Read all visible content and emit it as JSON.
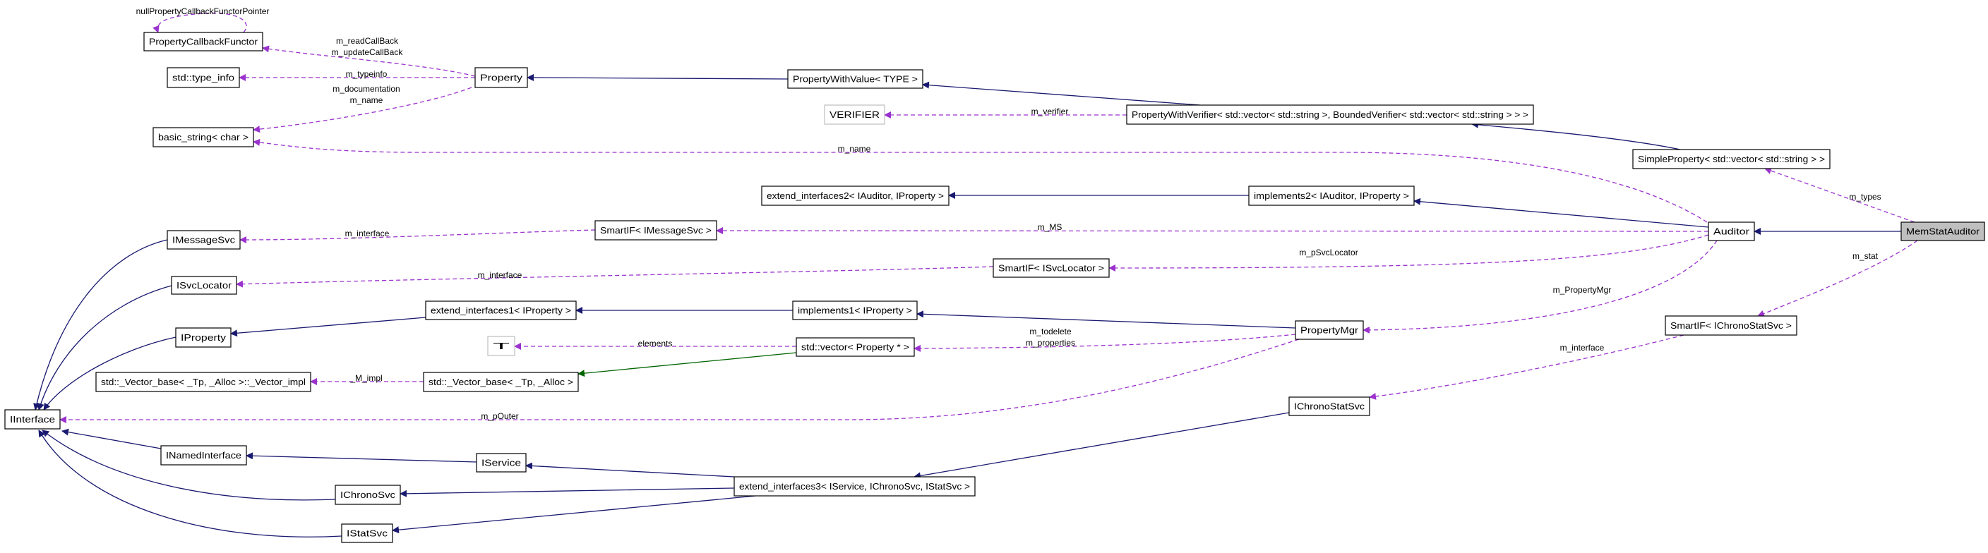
{
  "colors": {
    "inheritance": "#191970",
    "usage": "#9a32cd",
    "template": "#006400",
    "highlight_fill": "#bfbfbf",
    "undocumented_border": "#bfbfbf"
  },
  "nodes": [
    {
      "id": "pcf",
      "label": "PropertyCallbackFunctor"
    },
    {
      "id": "typeinfo",
      "label": "std::type_info"
    },
    {
      "id": "property",
      "label": "Property"
    },
    {
      "id": "basicstr",
      "label": "basic_string< char >"
    },
    {
      "id": "pwv",
      "label": "PropertyWithValue< TYPE >"
    },
    {
      "id": "verifier",
      "label": "VERIFIER",
      "style": "undocumented"
    },
    {
      "id": "pwverif",
      "label": "PropertyWithVerifier< std::vector< std::string >, BoundedVerifier< std::vector< std::string > > >"
    },
    {
      "id": "simpleprop",
      "label": "SimpleProperty< std::vector< std::string > >"
    },
    {
      "id": "ext2",
      "label": "extend_interfaces2< IAuditor, IProperty >"
    },
    {
      "id": "impl2",
      "label": "implements2< IAuditor, IProperty >"
    },
    {
      "id": "smartmsg",
      "label": "SmartIF< IMessageSvc >"
    },
    {
      "id": "imsg",
      "label": "IMessageSvc"
    },
    {
      "id": "auditor",
      "label": "Auditor"
    },
    {
      "id": "memstat",
      "label": "MemStatAuditor",
      "style": "highlight"
    },
    {
      "id": "smartsvc",
      "label": "SmartIF< ISvcLocator >"
    },
    {
      "id": "isvcloc",
      "label": "ISvcLocator"
    },
    {
      "id": "ext1",
      "label": "extend_interfaces1< IProperty >"
    },
    {
      "id": "impl1",
      "label": "implements1< IProperty >"
    },
    {
      "id": "smartchrono",
      "label": "SmartIF< IChronoStatSvc >"
    },
    {
      "id": "propmgr",
      "label": "PropertyMgr"
    },
    {
      "id": "iprop",
      "label": "IProperty"
    },
    {
      "id": "T",
      "label": "T",
      "style": "undocumented"
    },
    {
      "id": "vecprop",
      "label": "std::vector< Property * >"
    },
    {
      "id": "vimpl",
      "label": "std::_Vector_base< _Tp, _Alloc >::_Vector_impl"
    },
    {
      "id": "vbase",
      "label": "std::_Vector_base< _Tp, _Alloc >"
    },
    {
      "id": "ichronostat",
      "label": "IChronoStatSvc"
    },
    {
      "id": "iinterface",
      "label": "IInterface"
    },
    {
      "id": "inamed",
      "label": "INamedInterface"
    },
    {
      "id": "iservice",
      "label": "IService"
    },
    {
      "id": "ext3",
      "label": "extend_interfaces3< IService, IChronoSvc, IStatSvc >"
    },
    {
      "id": "ichrono",
      "label": "IChronoSvc"
    },
    {
      "id": "istat",
      "label": "IStatSvc"
    }
  ],
  "edges": [
    {
      "from": "pcf",
      "to": "pcf",
      "kind": "usage",
      "labels": [
        "nullPropertyCallbackFunctorPointer"
      ]
    },
    {
      "from": "property",
      "to": "pcf",
      "kind": "usage",
      "labels": [
        "m_readCallBack",
        "m_updateCallBack"
      ]
    },
    {
      "from": "property",
      "to": "typeinfo",
      "kind": "usage",
      "labels": [
        "m_typeinfo"
      ]
    },
    {
      "from": "property",
      "to": "basicstr",
      "kind": "usage",
      "labels": [
        "m_documentation",
        "m_name"
      ]
    },
    {
      "from": "pwv",
      "to": "property",
      "kind": "inheritance",
      "labels": []
    },
    {
      "from": "pwverif",
      "to": "pwv",
      "kind": "inheritance",
      "labels": []
    },
    {
      "from": "pwverif",
      "to": "verifier",
      "kind": "usage",
      "labels": [
        "m_verifier"
      ]
    },
    {
      "from": "simpleprop",
      "to": "pwverif",
      "kind": "inheritance",
      "labels": []
    },
    {
      "from": "auditor",
      "to": "basicstr",
      "kind": "usage",
      "labels": [
        "m_name"
      ]
    },
    {
      "from": "memstat",
      "to": "simpleprop",
      "kind": "usage",
      "labels": [
        "m_types"
      ]
    },
    {
      "from": "impl2",
      "to": "ext2",
      "kind": "inheritance",
      "labels": []
    },
    {
      "from": "auditor",
      "to": "impl2",
      "kind": "inheritance",
      "labels": []
    },
    {
      "from": "auditor",
      "to": "smartmsg",
      "kind": "usage",
      "labels": [
        "m_MS"
      ]
    },
    {
      "from": "smartmsg",
      "to": "imsg",
      "kind": "usage",
      "labels": [
        "m_interface"
      ]
    },
    {
      "from": "auditor",
      "to": "smartsvc",
      "kind": "usage",
      "labels": [
        "m_pSvcLocator"
      ]
    },
    {
      "from": "smartsvc",
      "to": "isvcloc",
      "kind": "usage",
      "labels": [
        "m_interface"
      ]
    },
    {
      "from": "memstat",
      "to": "auditor",
      "kind": "inheritance",
      "labels": []
    },
    {
      "from": "memstat",
      "to": "smartchrono",
      "kind": "usage",
      "labels": [
        "m_stat"
      ]
    },
    {
      "from": "auditor",
      "to": "propmgr",
      "kind": "usage",
      "labels": [
        "m_PropertyMgr"
      ]
    },
    {
      "from": "smartchrono",
      "to": "ichronostat",
      "kind": "usage",
      "labels": [
        "m_interface"
      ]
    },
    {
      "from": "propmgr",
      "to": "impl1",
      "kind": "inheritance",
      "labels": []
    },
    {
      "from": "impl1",
      "to": "ext1",
      "kind": "inheritance",
      "labels": []
    },
    {
      "from": "ext1",
      "to": "iprop",
      "kind": "inheritance",
      "labels": []
    },
    {
      "from": "propmgr",
      "to": "vecprop",
      "kind": "usage",
      "labels": [
        "m_todelete",
        "m_properties"
      ]
    },
    {
      "from": "vecprop",
      "to": "T",
      "kind": "usage",
      "labels": [
        "elements"
      ]
    },
    {
      "from": "vecprop",
      "to": "vbase",
      "kind": "template",
      "labels": []
    },
    {
      "from": "vbase",
      "to": "vimpl",
      "kind": "usage",
      "labels": [
        "_M_impl"
      ]
    },
    {
      "from": "propmgr",
      "to": "iinterface",
      "kind": "usage",
      "labels": [
        "m_pOuter"
      ]
    },
    {
      "from": "ichronostat",
      "to": "ext3",
      "kind": "inheritance",
      "labels": []
    },
    {
      "from": "ext3",
      "to": "iservice",
      "kind": "inheritance",
      "labels": []
    },
    {
      "from": "ext3",
      "to": "ichrono",
      "kind": "inheritance",
      "labels": []
    },
    {
      "from": "ext3",
      "to": "istat",
      "kind": "inheritance",
      "labels": []
    },
    {
      "from": "iservice",
      "to": "inamed",
      "kind": "inheritance",
      "labels": []
    },
    {
      "from": "inamed",
      "to": "iinterface",
      "kind": "inheritance",
      "labels": []
    },
    {
      "from": "ichrono",
      "to": "iinterface",
      "kind": "inheritance",
      "labels": []
    },
    {
      "from": "istat",
      "to": "iinterface",
      "kind": "inheritance",
      "labels": []
    },
    {
      "from": "imsg",
      "to": "iinterface",
      "kind": "inheritance",
      "labels": []
    },
    {
      "from": "isvcloc",
      "to": "iinterface",
      "kind": "inheritance",
      "labels": []
    },
    {
      "from": "iprop",
      "to": "iinterface",
      "kind": "inheritance",
      "labels": []
    }
  ]
}
